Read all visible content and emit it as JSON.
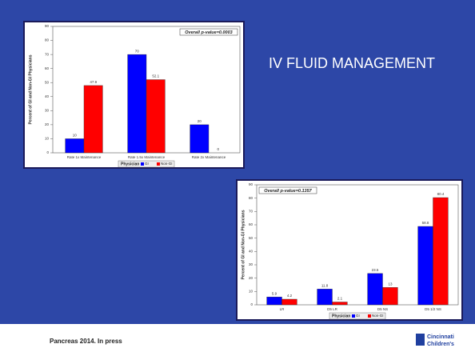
{
  "slide": {
    "title": "IV FLUID MANAGEMENT",
    "footer": "Pancreas 2014. In press",
    "logo": [
      "Cincinnati",
      "Children's"
    ]
  },
  "chart_data": [
    {
      "type": "bar",
      "annotation": "Overall p-value=0.0003",
      "ylabel": "Percent of GI and Non-GI Physicians",
      "legend_title": "Physician",
      "categories": [
        "Rate 1x Maintenance",
        "Rate 1.5x Maintenance",
        "Rate 2x Maintenance"
      ],
      "series": [
        {
          "name": "GI",
          "color": "#0000ff",
          "values": [
            10,
            70,
            20
          ]
        },
        {
          "name": "Non-GI",
          "color": "#ff0000",
          "values": [
            47.9,
            52.1,
            0
          ]
        }
      ],
      "ylim": [
        0,
        90
      ],
      "yticks": [
        0,
        10,
        20,
        30,
        40,
        50,
        60,
        70,
        80,
        90
      ]
    },
    {
      "type": "bar",
      "annotation": "Overall p-value=0.1357",
      "ylabel": "Percent of GI and Non-GI Physicians",
      "legend_title": "Physician",
      "categories": [
        "LR",
        "D5 LR",
        "D5 NS",
        "D5 1/2 NS"
      ],
      "series": [
        {
          "name": "GI",
          "color": "#0000ff",
          "values": [
            5.9,
            11.8,
            23.5,
            58.8
          ]
        },
        {
          "name": "Non-GI",
          "color": "#ff0000",
          "values": [
            4.2,
            2.1,
            13,
            80.4
          ]
        }
      ],
      "ylim": [
        0,
        90
      ],
      "yticks": [
        0,
        10,
        20,
        30,
        40,
        50,
        60,
        70,
        80,
        90
      ]
    }
  ]
}
